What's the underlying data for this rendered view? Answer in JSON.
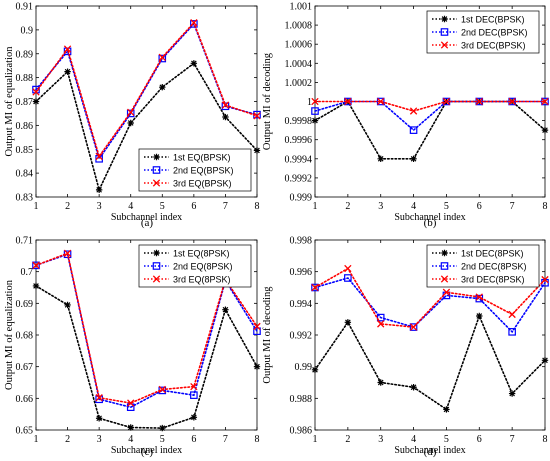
{
  "chart_data": [
    {
      "panel": "a",
      "type": "line",
      "caption": "(a)",
      "xlabel": "Subchannel index",
      "ylabel": "Output MI of equalization",
      "xlim": [
        1,
        8
      ],
      "ylim": [
        0.83,
        0.91
      ],
      "x_ticks": [
        "1",
        "2",
        "3",
        "4",
        "5",
        "6",
        "7",
        "8"
      ],
      "y_ticks": [
        "0.83",
        "0.84",
        "0.85",
        "0.86",
        "0.87",
        "0.88",
        "0.89",
        "0.9",
        "0.91"
      ],
      "legend_position": "bottom-right",
      "x": [
        1,
        2,
        3,
        4,
        5,
        6,
        7,
        8
      ],
      "series": [
        {
          "name": "1st EQ(BPSK)",
          "values": [
            0.87,
            0.8825,
            0.833,
            0.861,
            0.876,
            0.886,
            0.8635,
            0.8495
          ]
        },
        {
          "name": "2nd EQ(BPSK)",
          "values": [
            0.875,
            0.891,
            0.846,
            0.865,
            0.888,
            0.9025,
            0.868,
            0.8645
          ]
        },
        {
          "name": "3rd EQ(BPSK)",
          "values": [
            0.874,
            0.892,
            0.847,
            0.8655,
            0.8885,
            0.903,
            0.8685,
            0.864
          ]
        }
      ]
    },
    {
      "panel": "b",
      "type": "line",
      "caption": "(b)",
      "xlabel": "Subchannel index",
      "ylabel": "Output MI of decoding",
      "xlim": [
        1,
        8
      ],
      "ylim": [
        0.999,
        1.001
      ],
      "x_ticks": [
        "1",
        "2",
        "3",
        "4",
        "5",
        "6",
        "7",
        "8"
      ],
      "y_ticks": [
        "0.999",
        "0.9992",
        "0.9994",
        "0.9996",
        "0.9998",
        "1",
        "1.0002",
        "1.0004",
        "1.0006",
        "1.0008",
        "1.001"
      ],
      "legend_position": "top-right",
      "x": [
        1,
        2,
        3,
        4,
        5,
        6,
        7,
        8
      ],
      "series": [
        {
          "name": "1st DEC(BPSK)",
          "values": [
            0.9998,
            1.0,
            0.9994,
            0.9994,
            1.0,
            1.0,
            1.0,
            0.9997
          ]
        },
        {
          "name": "2nd DEC(BPSK)",
          "values": [
            0.9999,
            1.0,
            1.0,
            0.9997,
            1.0,
            1.0,
            1.0,
            1.0
          ]
        },
        {
          "name": "3rd DEC(BPSK)",
          "values": [
            1.0,
            1.0,
            1.0,
            0.9999,
            1.0,
            1.0,
            1.0,
            1.0
          ]
        }
      ]
    },
    {
      "panel": "c",
      "type": "line",
      "caption": "(c)",
      "xlabel": "Subchannel index",
      "ylabel": "Output MI of equalization",
      "xlim": [
        1,
        8
      ],
      "ylim": [
        0.65,
        0.71
      ],
      "x_ticks": [
        "1",
        "2",
        "3",
        "4",
        "5",
        "6",
        "7",
        "8"
      ],
      "y_ticks": [
        "0.65",
        "0.66",
        "0.67",
        "0.68",
        "0.69",
        "0.7",
        "0.71"
      ],
      "legend_position": "top-right",
      "x": [
        1,
        2,
        3,
        4,
        5,
        6,
        7,
        8
      ],
      "series": [
        {
          "name": "1st EQ(8PSK)",
          "values": [
            0.6955,
            0.6895,
            0.6537,
            0.6508,
            0.6506,
            0.654,
            0.688,
            0.67
          ]
        },
        {
          "name": "2nd EQ(8PSK)",
          "values": [
            0.702,
            0.7055,
            0.6597,
            0.6572,
            0.6625,
            0.661,
            0.6972,
            0.6812
          ]
        },
        {
          "name": "3rd EQ(8PSK)",
          "values": [
            0.702,
            0.7058,
            0.6602,
            0.6585,
            0.6628,
            0.6637,
            0.6975,
            0.6827
          ]
        }
      ]
    },
    {
      "panel": "d",
      "type": "line",
      "caption": "(d)",
      "xlabel": "Subchannel index",
      "ylabel": "Output MI of decoding",
      "xlim": [
        1,
        8
      ],
      "ylim": [
        0.986,
        0.998
      ],
      "x_ticks": [
        "1",
        "2",
        "3",
        "4",
        "5",
        "6",
        "7",
        "8"
      ],
      "y_ticks": [
        "0.986",
        "0.988",
        "0.99",
        "0.992",
        "0.994",
        "0.996",
        "0.998"
      ],
      "legend_position": "top-right",
      "x": [
        1,
        2,
        3,
        4,
        5,
        6,
        7,
        8
      ],
      "series": [
        {
          "name": "1st DEC(8PSK)",
          "values": [
            0.9898,
            0.9928,
            0.989,
            0.9887,
            0.9873,
            0.9932,
            0.9883,
            0.9904
          ]
        },
        {
          "name": "2nd DEC(8PSK)",
          "values": [
            0.995,
            0.9956,
            0.9931,
            0.9925,
            0.9945,
            0.9943,
            0.9922,
            0.9953
          ]
        },
        {
          "name": "3rd DEC(8PSK)",
          "values": [
            0.995,
            0.9962,
            0.9927,
            0.9925,
            0.9947,
            0.9944,
            0.9933,
            0.9955
          ]
        }
      ]
    }
  ],
  "styles": {
    "series_colors": [
      "#000000",
      "#0000ff",
      "#ff0000"
    ],
    "series_dash": [
      "dotted",
      "dotted",
      "dotted"
    ],
    "series_markers": [
      "asterisk",
      "square",
      "cross"
    ]
  }
}
